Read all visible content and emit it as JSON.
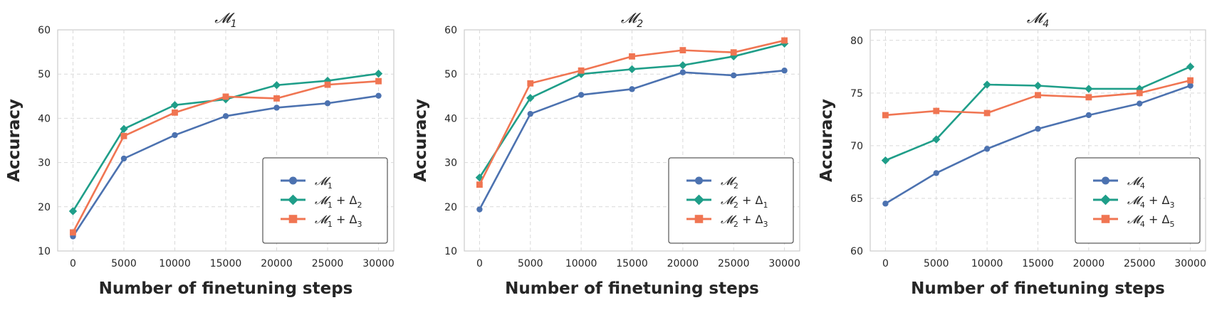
{
  "chart_data": [
    {
      "type": "line",
      "title": "𝓜1",
      "xlabel": "Number of finetuning steps",
      "ylabel": "Accuracy",
      "x": [
        0,
        5000,
        10000,
        15000,
        20000,
        25000,
        30000
      ],
      "xticks": [
        "0",
        "5000",
        "10000",
        "15000",
        "20000",
        "25000",
        "30000"
      ],
      "ylim": [
        10,
        60
      ],
      "yticks": [
        "10",
        "20",
        "30",
        "40",
        "50",
        "60"
      ],
      "grid": true,
      "legend_position": "bottom-right",
      "series": [
        {
          "name": "𝓜1",
          "marker": "circle",
          "color": "#4c72b0",
          "values": [
            13.3,
            30.9,
            36.2,
            40.5,
            42.4,
            43.4,
            45.1
          ]
        },
        {
          "name": "𝓜1 + Δ2",
          "marker": "diamond",
          "color": "#1f9e89",
          "values": [
            19.0,
            37.6,
            43.0,
            44.3,
            47.5,
            48.5,
            50.1
          ]
        },
        {
          "name": "𝓜1 + Δ3",
          "marker": "square",
          "color": "#f07552",
          "values": [
            14.2,
            36.0,
            41.3,
            44.9,
            44.5,
            47.6,
            48.4
          ]
        }
      ]
    },
    {
      "type": "line",
      "title": "𝓜2",
      "xlabel": "Number of finetuning steps",
      "ylabel": "Accuracy",
      "x": [
        0,
        5000,
        10000,
        15000,
        20000,
        25000,
        30000
      ],
      "xticks": [
        "0",
        "5000",
        "10000",
        "15000",
        "20000",
        "25000",
        "30000"
      ],
      "ylim": [
        10,
        60
      ],
      "yticks": [
        "10",
        "20",
        "30",
        "40",
        "50",
        "60"
      ],
      "grid": true,
      "legend_position": "bottom-right",
      "series": [
        {
          "name": "𝓜2",
          "marker": "circle",
          "color": "#4c72b0",
          "values": [
            19.4,
            41.0,
            45.3,
            46.6,
            50.4,
            49.7,
            50.8
          ]
        },
        {
          "name": "𝓜2 + Δ1",
          "marker": "diamond",
          "color": "#1f9e89",
          "values": [
            26.6,
            44.6,
            50.0,
            51.1,
            52.0,
            54.0,
            56.9
          ]
        },
        {
          "name": "𝓜2 + Δ3",
          "marker": "square",
          "color": "#f07552",
          "values": [
            25.0,
            47.9,
            50.8,
            54.0,
            55.4,
            54.9,
            57.6
          ]
        }
      ]
    },
    {
      "type": "line",
      "title": "𝓜4",
      "xlabel": "Number of finetuning steps",
      "ylabel": "Accuracy",
      "x": [
        0,
        5000,
        10000,
        15000,
        20000,
        25000,
        30000
      ],
      "xticks": [
        "0",
        "5000",
        "10000",
        "15000",
        "20000",
        "25000",
        "30000"
      ],
      "ylim": [
        60,
        81
      ],
      "yticks": [
        "60",
        "65",
        "70",
        "75",
        "80"
      ],
      "grid": true,
      "legend_position": "bottom-right",
      "series": [
        {
          "name": "𝓜4",
          "marker": "circle",
          "color": "#4c72b0",
          "values": [
            64.5,
            67.4,
            69.7,
            71.6,
            72.9,
            74.0,
            75.7
          ]
        },
        {
          "name": "𝓜4 + Δ3",
          "marker": "diamond",
          "color": "#1f9e89",
          "values": [
            68.6,
            70.6,
            75.8,
            75.7,
            75.4,
            75.4,
            77.5
          ]
        },
        {
          "name": "𝓜4 + Δ5",
          "marker": "square",
          "color": "#f07552",
          "values": [
            72.9,
            73.3,
            73.1,
            74.8,
            74.6,
            75.0,
            76.2
          ]
        }
      ]
    }
  ]
}
